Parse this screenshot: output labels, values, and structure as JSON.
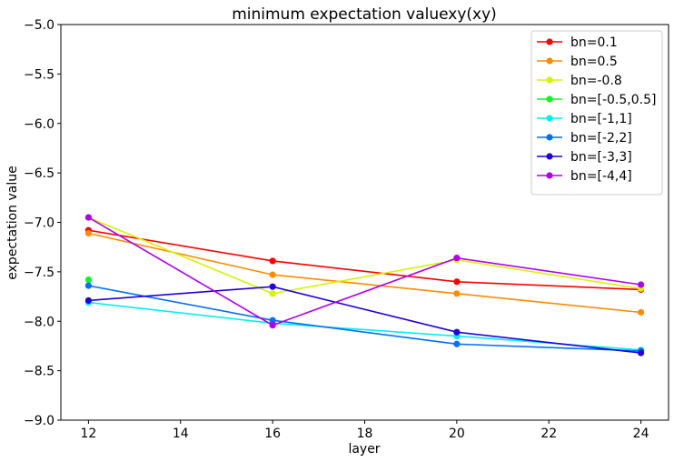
{
  "chart_data": {
    "type": "line",
    "title": "minimum expectation valuexy(xy)",
    "xlabel": "layer",
    "ylabel": "expectation value",
    "x": [
      12,
      16,
      20,
      24
    ],
    "xlim": [
      11.4,
      24.6
    ],
    "ylim": [
      -9.0,
      -5.0
    ],
    "xticks": [
      12,
      14,
      16,
      18,
      20,
      22,
      24
    ],
    "yticks": [
      -9.0,
      -8.5,
      -8.0,
      -7.5,
      -7.0,
      -6.5,
      -6.0,
      -5.5,
      -5.0
    ],
    "xtick_labels": [
      "12",
      "14",
      "16",
      "18",
      "20",
      "22",
      "24"
    ],
    "ytick_labels": [
      "−9.0",
      "−8.5",
      "−8.0",
      "−7.5",
      "−7.0",
      "−6.5",
      "−6.0",
      "−5.5",
      "−5.0"
    ],
    "grid": false,
    "legend_position": "top-right",
    "series": [
      {
        "name": "bn=0.1",
        "color": "#ff0000",
        "values": [
          -7.08,
          -7.39,
          -7.6,
          -7.68
        ]
      },
      {
        "name": "bn=0.5",
        "color": "#ff8c00",
        "values": [
          -7.11,
          -7.53,
          -7.72,
          -7.91
        ]
      },
      {
        "name": "bn=-0.8",
        "color": "#d4f500",
        "values": [
          -6.95,
          -7.72,
          -7.38,
          -7.67
        ]
      },
      {
        "name": "bn=[-0.5,0.5]",
        "color": "#00ff20",
        "values": [
          -7.58,
          null,
          null,
          null
        ]
      },
      {
        "name": "bn=[-1,1]",
        "color": "#00f0f0",
        "values": [
          -7.81,
          -8.02,
          -8.15,
          -8.29
        ]
      },
      {
        "name": "bn=[-2,2]",
        "color": "#0070ff",
        "values": [
          -7.64,
          -7.99,
          -8.23,
          -8.3
        ]
      },
      {
        "name": "bn=[-3,3]",
        "color": "#2000e0",
        "values": [
          -7.79,
          -7.65,
          -8.11,
          -8.32
        ]
      },
      {
        "name": "bn=[-4,4]",
        "color": "#b000f0",
        "values": [
          -6.95,
          -8.04,
          -7.36,
          -7.63
        ]
      }
    ]
  }
}
